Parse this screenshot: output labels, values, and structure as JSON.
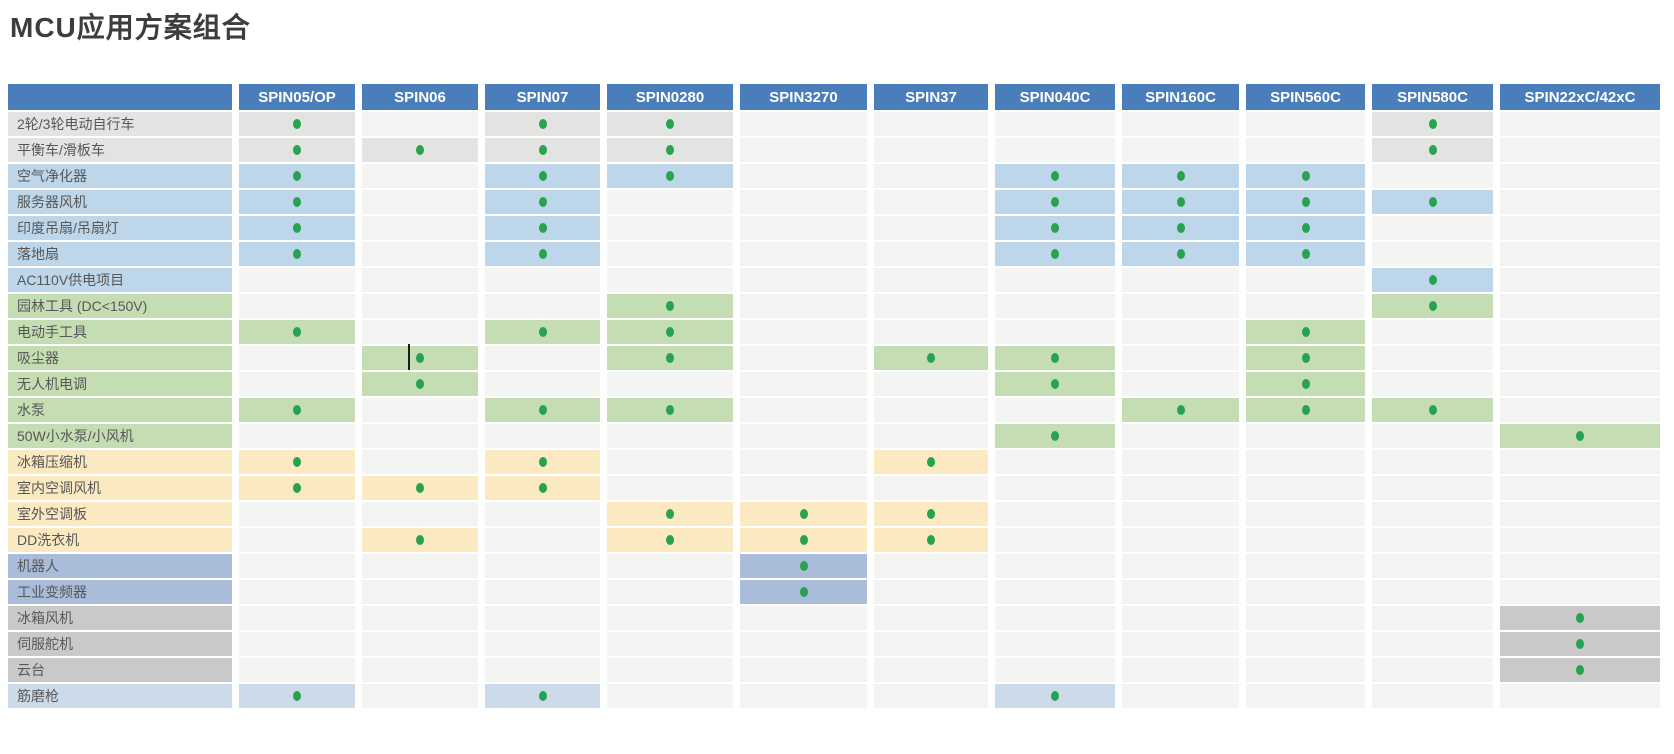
{
  "title": "MCU应用方案组合",
  "colors": {
    "header_bg": "#4a7ebb",
    "header_text": "#ffffff",
    "cell_default": "#f4f4f2",
    "dot": "#27a24e",
    "label_text": "#575757",
    "categories": {
      "gray": "#e3e3e1",
      "blue": "#bdd6ea",
      "blue2": "#ccdbea",
      "green": "#c4ddb3",
      "yellow": "#fbe9c2",
      "periwinkle": "#a9bcd9",
      "darkgray": "#c9c9c9"
    }
  },
  "chart_data": {
    "type": "table",
    "title": "MCU应用方案组合",
    "legend_position": "none",
    "grid": false,
    "columns": [
      "SPIN05/OP",
      "SPIN06",
      "SPIN07",
      "SPIN0280",
      "SPIN3270",
      "SPIN37",
      "SPIN040C",
      "SPIN160C",
      "SPIN560C",
      "SPIN580C",
      "SPIN22xC/42xC"
    ],
    "rows": [
      {
        "label": "2轮/3轮电动自行车",
        "category": "gray",
        "dots": [
          1,
          0,
          1,
          1,
          0,
          0,
          0,
          0,
          0,
          1,
          0
        ]
      },
      {
        "label": "平衡车/滑板车",
        "category": "gray",
        "dots": [
          1,
          1,
          1,
          1,
          0,
          0,
          0,
          0,
          0,
          1,
          0
        ]
      },
      {
        "label": "空气净化器",
        "category": "blue",
        "dots": [
          1,
          0,
          1,
          1,
          0,
          0,
          1,
          1,
          1,
          0,
          0
        ]
      },
      {
        "label": "服务器风机",
        "category": "blue",
        "dots": [
          1,
          0,
          1,
          0,
          0,
          0,
          1,
          1,
          1,
          1,
          0
        ]
      },
      {
        "label": "印度吊扇/吊扇灯",
        "category": "blue",
        "dots": [
          1,
          0,
          1,
          0,
          0,
          0,
          1,
          1,
          1,
          0,
          0
        ]
      },
      {
        "label": "落地扇",
        "category": "blue",
        "dots": [
          1,
          0,
          1,
          0,
          0,
          0,
          1,
          1,
          1,
          0,
          0
        ]
      },
      {
        "label": "AC110V供电项目",
        "category": "blue",
        "dots": [
          0,
          0,
          0,
          0,
          0,
          0,
          0,
          0,
          0,
          1,
          0
        ]
      },
      {
        "label": "园林工具 (DC<150V)",
        "category": "green",
        "dots": [
          0,
          0,
          0,
          1,
          0,
          0,
          0,
          0,
          0,
          1,
          0
        ]
      },
      {
        "label": "电动手工具",
        "category": "green",
        "dots": [
          1,
          0,
          1,
          1,
          0,
          0,
          0,
          0,
          1,
          0,
          0
        ]
      },
      {
        "label": "吸尘器",
        "category": "green",
        "dots": [
          0,
          1,
          0,
          1,
          0,
          1,
          1,
          0,
          1,
          0,
          0
        ],
        "cursor_col": 1
      },
      {
        "label": "无人机电调",
        "category": "green",
        "dots": [
          0,
          1,
          0,
          0,
          0,
          0,
          1,
          0,
          1,
          0,
          0
        ]
      },
      {
        "label": "水泵",
        "category": "green",
        "dots": [
          1,
          0,
          1,
          1,
          0,
          0,
          0,
          1,
          1,
          1,
          0
        ]
      },
      {
        "label": "50W小水泵/小风机",
        "category": "green",
        "dots": [
          0,
          0,
          0,
          0,
          0,
          0,
          1,
          0,
          0,
          0,
          1
        ]
      },
      {
        "label": "冰箱压缩机",
        "category": "yellow",
        "dots": [
          1,
          0,
          1,
          0,
          0,
          1,
          0,
          0,
          0,
          0,
          0
        ]
      },
      {
        "label": "室内空调风机",
        "category": "yellow",
        "dots": [
          1,
          1,
          1,
          0,
          0,
          0,
          0,
          0,
          0,
          0,
          0
        ]
      },
      {
        "label": "室外空调板",
        "category": "yellow",
        "dots": [
          0,
          0,
          0,
          1,
          1,
          1,
          0,
          0,
          0,
          0,
          0
        ]
      },
      {
        "label": "DD洗衣机",
        "category": "yellow",
        "dots": [
          0,
          1,
          0,
          1,
          1,
          1,
          0,
          0,
          0,
          0,
          0
        ]
      },
      {
        "label": "机器人",
        "category": "periwinkle",
        "dots": [
          0,
          0,
          0,
          0,
          1,
          0,
          0,
          0,
          0,
          0,
          0
        ]
      },
      {
        "label": "工业变频器",
        "category": "periwinkle",
        "dots": [
          0,
          0,
          0,
          0,
          1,
          0,
          0,
          0,
          0,
          0,
          0
        ]
      },
      {
        "label": "冰箱风机",
        "category": "darkgray",
        "dots": [
          0,
          0,
          0,
          0,
          0,
          0,
          0,
          0,
          0,
          0,
          1
        ]
      },
      {
        "label": "伺服舵机",
        "category": "darkgray",
        "dots": [
          0,
          0,
          0,
          0,
          0,
          0,
          0,
          0,
          0,
          0,
          1
        ]
      },
      {
        "label": "云台",
        "category": "darkgray",
        "dots": [
          0,
          0,
          0,
          0,
          0,
          0,
          0,
          0,
          0,
          0,
          1
        ]
      },
      {
        "label": "筋磨枪",
        "category": "blue2",
        "dots": [
          1,
          0,
          1,
          0,
          0,
          0,
          1,
          0,
          0,
          0,
          0
        ]
      }
    ]
  }
}
